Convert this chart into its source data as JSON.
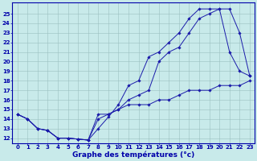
{
  "xlabel": "Graphe des températures (°c)",
  "x_ticks": [
    0,
    1,
    2,
    3,
    4,
    5,
    6,
    7,
    8,
    9,
    10,
    11,
    12,
    13,
    14,
    15,
    16,
    17,
    18,
    19,
    20,
    21,
    22,
    23
  ],
  "y_ticks": [
    12,
    13,
    14,
    15,
    16,
    17,
    18,
    19,
    20,
    21,
    22,
    23,
    24,
    25
  ],
  "ylim": [
    11.5,
    26.2
  ],
  "xlim": [
    -0.5,
    23.5
  ],
  "line1_x": [
    0,
    1,
    2,
    3,
    4,
    5,
    6,
    7,
    8,
    9,
    10,
    11,
    12,
    13,
    14,
    15,
    16,
    17,
    18,
    19,
    20,
    21,
    22,
    23
  ],
  "line1_y": [
    14.5,
    14.0,
    13.0,
    12.8,
    12.0,
    12.0,
    11.9,
    11.8,
    13.0,
    14.2,
    15.5,
    17.5,
    18.0,
    20.5,
    21.0,
    22.0,
    23.0,
    24.5,
    25.5,
    25.5,
    25.5,
    21.0,
    19.0,
    18.5
  ],
  "line2_x": [
    0,
    1,
    2,
    3,
    4,
    5,
    6,
    7,
    8,
    9,
    10,
    11,
    12,
    13,
    14,
    15,
    16,
    17,
    18,
    19,
    20,
    21,
    22,
    23
  ],
  "line2_y": [
    14.5,
    14.0,
    13.0,
    12.8,
    12.0,
    12.0,
    11.9,
    11.8,
    14.5,
    14.5,
    15.0,
    16.0,
    16.5,
    17.0,
    20.0,
    21.0,
    21.5,
    23.0,
    24.5,
    25.0,
    25.5,
    25.5,
    23.0,
    18.5
  ],
  "line3_x": [
    0,
    1,
    2,
    3,
    4,
    5,
    6,
    7,
    8,
    9,
    10,
    11,
    12,
    13,
    14,
    15,
    16,
    17,
    18,
    19,
    20,
    21,
    22,
    23
  ],
  "line3_y": [
    14.5,
    14.0,
    13.0,
    12.8,
    12.0,
    12.0,
    11.9,
    11.8,
    14.0,
    14.5,
    15.0,
    15.5,
    15.5,
    15.5,
    16.0,
    16.0,
    16.5,
    17.0,
    17.0,
    17.0,
    17.5,
    17.5,
    17.5,
    18.0
  ],
  "line_color": "#1a1aaa",
  "bg_color": "#c8eaea",
  "grid_color": "#9bbfbf",
  "axis_color": "#0000aa",
  "tick_fontsize": 5.0,
  "label_fontsize": 6.5
}
